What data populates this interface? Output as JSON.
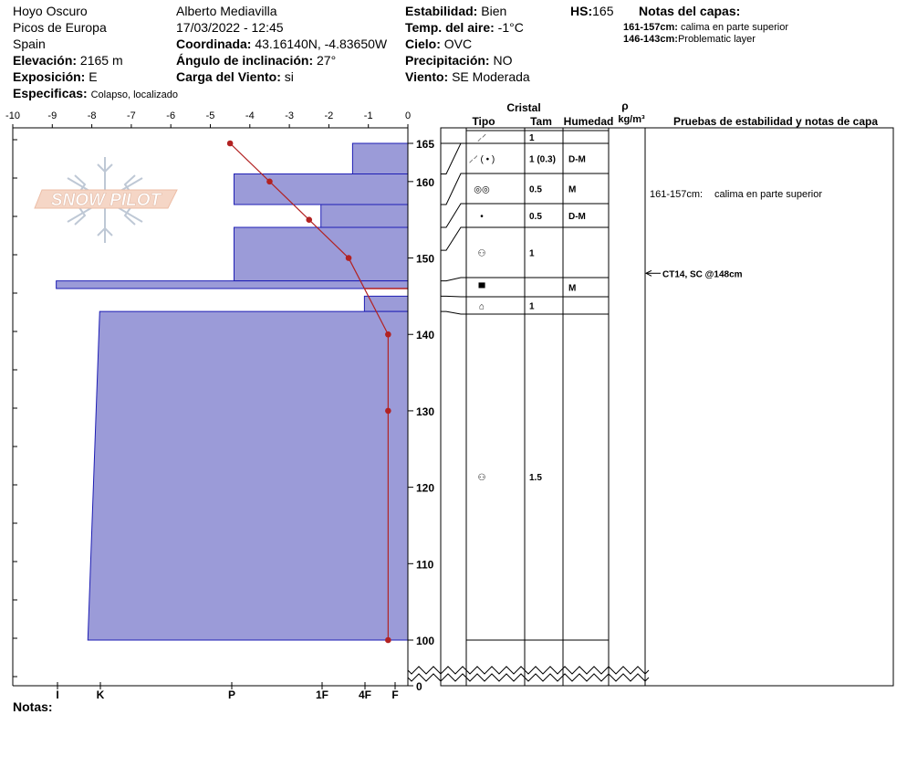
{
  "header": {
    "location_name": "Hoyo Oscuro",
    "range": "Picos de Europa",
    "country": "Spain",
    "elevation_label": "Elevación:",
    "elevation_value": "2165 m",
    "aspect_label": "Exposición:",
    "aspect_value": "E",
    "specifics_label": "Especificas:",
    "specifics_value": "Colapso, localizado",
    "observer": "Alberto Mediavilla",
    "datetime": "17/03/2022 - 12:45",
    "coord_label": "Coordinada:",
    "coord_value": "43.16140N, -4.83650W",
    "slope_label": "Ángulo de inclinación:",
    "slope_value": "27°",
    "wind_load_label": "Carga del Viento:",
    "wind_load_value": "si",
    "stability_label": "Estabilidad:",
    "stability_value": "Bien",
    "air_temp_label": "Temp. del aire:",
    "air_temp_value": "-1°C",
    "sky_label": "Cielo:",
    "sky_value": "OVC",
    "precip_label": "Precipitación:",
    "precip_value": "NO",
    "wind_label": "Viento:",
    "wind_value": "SE Moderada",
    "hs_label": "HS:",
    "hs_value": "165",
    "layer_notes_label": "Notas del capas:",
    "layer_notes": [
      {
        "range": "161-157cm:",
        "text": "calima en parte superior"
      },
      {
        "range": "146-143cm:",
        "text": "Problematic layer"
      }
    ],
    "notes_label": "Notas:"
  },
  "logo_text": "SNOW PILOT",
  "columns": {
    "cristal": "Cristal",
    "tipo": "Tipo",
    "tam": "Tam",
    "humedad": "Humedad",
    "rho": "ρ",
    "density_unit": "kg/m³",
    "tests": "Pruebas de estabilidad y notas de capa"
  },
  "colors": {
    "hardness_fill": "#9b9bd8",
    "hardness_stroke": "#1e1eb4",
    "temp_line": "#b22222"
  },
  "layers": [
    {
      "top": 165,
      "bottom": 161,
      "crystal": "⸝⸍",
      "size": "1",
      "moisture": ""
    },
    {
      "top": 161,
      "bottom": 157,
      "crystal": "⸝⸍ ( • )",
      "size": "1 (0.3)",
      "moisture": "D-M"
    },
    {
      "top": 157,
      "bottom": 154,
      "crystal": "◎◎",
      "size": "0.5",
      "moisture": "M"
    },
    {
      "top": 154,
      "bottom": 151,
      "crystal": "•",
      "size": "0.5",
      "moisture": "D-M"
    },
    {
      "top": 151,
      "bottom": 147,
      "crystal": "⚇",
      "size": "1",
      "moisture": ""
    },
    {
      "top": 147,
      "bottom": 145,
      "crystal": "▀",
      "size": "",
      "moisture": "M"
    },
    {
      "top": 145,
      "bottom": 143,
      "crystal": "⌂",
      "size": "1",
      "moisture": ""
    },
    {
      "top": 143,
      "bottom": 100,
      "crystal": "⚇",
      "size": "1.5",
      "moisture": ""
    }
  ],
  "test_notes": [
    {
      "height": 157,
      "label": "161-157cm:",
      "text": "calima en parte superior"
    },
    {
      "height": 148,
      "label": "CT14, SC @148cm",
      "text": ""
    }
  ],
  "chart_data": {
    "type": "snow_profile",
    "height_axis": {
      "ticks": [
        165,
        160,
        150,
        140,
        130,
        120,
        110,
        100,
        0
      ],
      "break_between": [
        0,
        100
      ],
      "unit": "cm"
    },
    "temperature_axis": {
      "min": -10,
      "max": 0,
      "ticks": [
        -10,
        -9,
        -8,
        -7,
        -6,
        -5,
        -4,
        -3,
        -2,
        -1,
        0
      ]
    },
    "hardness_axis": {
      "ticks": [
        "I",
        "K",
        "P",
        "1F",
        "4F",
        "F"
      ]
    },
    "temperature_profile": [
      {
        "height": 165,
        "temp": -4.5
      },
      {
        "height": 160,
        "temp": -3.5
      },
      {
        "height": 155,
        "temp": -2.5
      },
      {
        "height": 150,
        "temp": -1.5
      },
      {
        "height": 140,
        "temp": -0.5
      },
      {
        "height": 130,
        "temp": -0.5
      },
      {
        "height": 100,
        "temp": -0.5
      }
    ],
    "hardness_profile": [
      {
        "top": 165,
        "bottom": 161,
        "extent": 1.4
      },
      {
        "top": 161,
        "bottom": 157,
        "extent": 4.4
      },
      {
        "top": 157,
        "bottom": 154,
        "extent": 2.2
      },
      {
        "top": 154,
        "bottom": 147,
        "extent": 4.4
      },
      {
        "top": 147,
        "bottom": 146,
        "extent": 8.9
      },
      {
        "top": 145,
        "bottom": 143,
        "extent": 1.1
      },
      {
        "top": 143,
        "bottom": 100,
        "extent": 7.8,
        "bottom_extent": 8.1
      }
    ]
  }
}
